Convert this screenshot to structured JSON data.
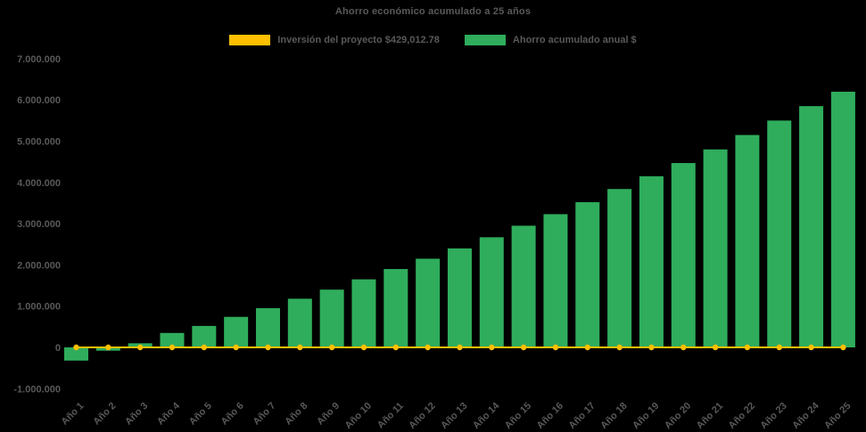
{
  "chart_data": {
    "type": "bar",
    "title": "Ahorro económico acumulado a 25 años",
    "categories": [
      "Año 1",
      "Año 2",
      "Año 3",
      "Año 4",
      "Año 5",
      "Año 6",
      "Año 7",
      "Año 8",
      "Año 9",
      "Año 10",
      "Año 11",
      "Año 12",
      "Año 13",
      "Año 14",
      "Año 15",
      "Año 16",
      "Año 17",
      "Año 18",
      "Año 19",
      "Año 20",
      "Año 21",
      "Año 22",
      "Año 23",
      "Año 24",
      "Año 25"
    ],
    "series": [
      {
        "name": "Inversión del proyecto $429,012.78",
        "type": "line",
        "color": "#FFC000",
        "investment_amount": 429012.78,
        "plotted_value": 0
      },
      {
        "name": "Ahorro acumulado anual $",
        "type": "bar",
        "color": "#2FAD5C",
        "values": [
          -320000,
          -80000,
          100000,
          350000,
          520000,
          740000,
          950000,
          1180000,
          1400000,
          1650000,
          1900000,
          2150000,
          2400000,
          2670000,
          2950000,
          3230000,
          3520000,
          3840000,
          4150000,
          4470000,
          4800000,
          5150000,
          5500000,
          5850000,
          6200000
        ]
      }
    ],
    "ylim": [
      -1000000,
      7000000
    ],
    "ytick_step": 1000000,
    "ytick_labels": [
      "-1.000.000",
      "0",
      "1.000.000",
      "2.000.000",
      "3.000.000",
      "4.000.000",
      "5.000.000",
      "6.000.000",
      "7.000.000"
    ],
    "grid": false,
    "legend_position": "top",
    "background": "#000000",
    "text_color": "#595959"
  }
}
